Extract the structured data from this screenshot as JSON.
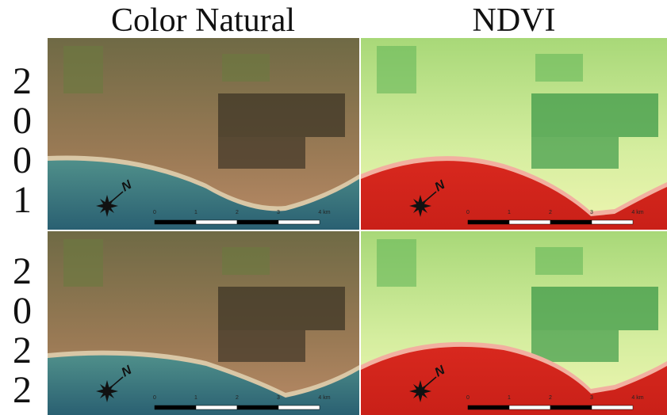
{
  "header": {
    "columns": [
      "Color Natural",
      "NDVI"
    ]
  },
  "rows": [
    {
      "label": "2001"
    },
    {
      "label": "2022"
    }
  ],
  "scale_bar": {
    "labels": [
      "0",
      "1",
      "2",
      "3",
      "4 km"
    ]
  },
  "north_arrow": {
    "label": "N"
  }
}
